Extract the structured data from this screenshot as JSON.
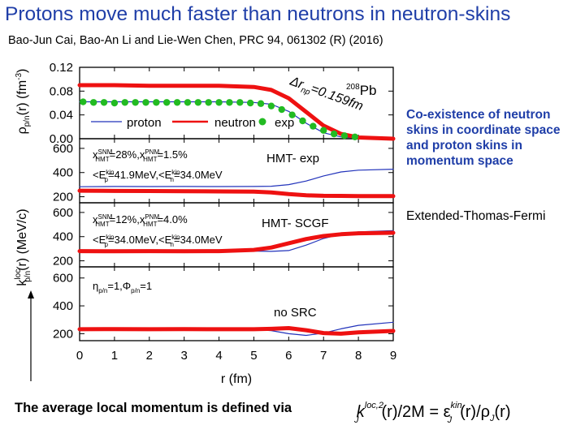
{
  "slide": {
    "title": "Protons move much faster than neutrons in neutron-skins",
    "citation": "Bao-Jun Cai, Bao-An Li and Lie-Wen Chen, PRC 94, 061302 (R) (2016)",
    "note": "Co-existence of neutron skins in coordinate space and proton skins in momentum space",
    "etf_label": "Extended-Thomas-Fermi",
    "average_text": "The average local momentum is defined via"
  },
  "formula": {
    "k": "k",
    "k_sub": "J",
    "k_sup": "loc,2",
    "mid": "(r)/2M  =  ε",
    "eps_sub": "J",
    "eps_sup": "kin",
    "tail": "(r)/ρ",
    "rho_sub": "J",
    "end": "(r)"
  },
  "figure": {
    "xlabel": "r (fm)",
    "ylabel_top_main": "ρ",
    "ylabel_top_sub": "p/n",
    "ylabel_top_rest": "(r) (fm",
    "ylabel_top_sup": "-3",
    "ylabel_top_end": ")",
    "ylabel_bottom_k": "k",
    "ylabel_bottom_sup": "loc",
    "ylabel_bottom_sub": "p/n",
    "ylabel_bottom_rest": "(r) (MeV/c)",
    "density_panel": {
      "legend": [
        "proton",
        "neutron",
        "exp"
      ],
      "annotation": "Δr",
      "annotation_sub": "np",
      "annotation_value": "=0.159fm",
      "nucleus_mass": "208",
      "nucleus": "Pb"
    },
    "panels": [
      {
        "tag": "HMT- exp",
        "line1": {
          "x1": "x",
          "s1a": "SNM",
          "s1b": "HMT",
          "v1": "=28%,x",
          "s2a": "PNM",
          "s2b": "HMT",
          "v2": "=1.5%"
        },
        "line2": {
          "a": "<E",
          "a_sup": "kin",
          "a_sub": "p",
          "av": "=41.9MeV,<E",
          "b_sup": "kin",
          "b_sub": "n",
          "bv": "=34.0MeV"
        }
      },
      {
        "tag": "HMT- SCGF",
        "line1": {
          "x1": "x",
          "s1a": "SNM",
          "s1b": "HMT",
          "v1": "=12%,x",
          "s2a": "PNM",
          "s2b": "HMT",
          "v2": "=4.0%"
        },
        "line2": {
          "a": "<E",
          "a_sup": "kin",
          "a_sub": "p",
          "av": "=34.0MeV,<E",
          "b_sup": "kin",
          "b_sub": "n",
          "bv": "=34.0MeV"
        }
      },
      {
        "tag": "no SRC",
        "line1": {
          "eta": "η",
          "eta_sub": "p/n",
          "eta_val": "=1,Φ",
          "phi_sub": "p/n",
          "phi_val": "=1"
        }
      }
    ]
  },
  "colors": {
    "title": "#1f3ea8",
    "proton": "#2233bb",
    "neutron": "#ee1111",
    "exp": "#22bb22"
  },
  "chart_data": [
    {
      "type": "line",
      "xlim": [
        0,
        9
      ],
      "ylim": [
        0,
        0.12
      ],
      "x_ticks": [
        "0",
        "1",
        "2",
        "3",
        "4",
        "5",
        "6",
        "7",
        "8",
        "9"
      ],
      "y_ticks": [
        "0.00",
        "0.04",
        "0.08",
        "0.12"
      ],
      "series": [
        {
          "name": "proton",
          "x": [
            0,
            1,
            2,
            3,
            4,
            5,
            5.5,
            6,
            6.5,
            7,
            7.5,
            8,
            9
          ],
          "y": [
            0.062,
            0.062,
            0.062,
            0.062,
            0.062,
            0.061,
            0.058,
            0.046,
            0.026,
            0.01,
            0.003,
            0.001,
            0
          ]
        },
        {
          "name": "neutron",
          "x": [
            0,
            1,
            2,
            3,
            4,
            5,
            5.5,
            6,
            6.5,
            7,
            7.5,
            8,
            9
          ],
          "y": [
            0.09,
            0.09,
            0.089,
            0.089,
            0.089,
            0.087,
            0.082,
            0.068,
            0.045,
            0.022,
            0.008,
            0.002,
            0
          ]
        },
        {
          "name": "exp",
          "x": [
            0.1,
            0.4,
            0.7,
            1.0,
            1.3,
            1.6,
            1.9,
            2.2,
            2.5,
            2.8,
            3.1,
            3.4,
            3.7,
            4.0,
            4.3,
            4.6,
            4.9,
            5.2,
            5.5,
            5.8,
            6.1,
            6.4,
            6.7,
            7.0,
            7.3,
            7.6,
            7.9
          ],
          "y": [
            0.062,
            0.061,
            0.061,
            0.06,
            0.061,
            0.061,
            0.061,
            0.061,
            0.061,
            0.061,
            0.061,
            0.061,
            0.061,
            0.061,
            0.061,
            0.061,
            0.06,
            0.059,
            0.055,
            0.049,
            0.04,
            0.03,
            0.021,
            0.014,
            0.008,
            0.005,
            0.003
          ]
        }
      ]
    },
    {
      "type": "line",
      "xlim": [
        0,
        9
      ],
      "ylim": [
        150,
        680
      ],
      "y_ticks": [
        "200",
        "400",
        "600"
      ],
      "series": [
        {
          "name": "proton",
          "x": [
            0,
            1,
            2,
            3,
            4,
            5,
            5.5,
            6,
            6.5,
            7,
            7.5,
            8,
            9
          ],
          "y": [
            283,
            285,
            284,
            285,
            284,
            285,
            287,
            300,
            330,
            372,
            405,
            420,
            428
          ]
        },
        {
          "name": "neutron",
          "x": [
            0,
            1,
            2,
            3,
            4,
            5,
            5.5,
            6,
            6.5,
            7,
            7.5,
            8,
            9
          ],
          "y": [
            250,
            248,
            247,
            246,
            244,
            242,
            236,
            222,
            212,
            208,
            207,
            206,
            205
          ]
        }
      ]
    },
    {
      "type": "line",
      "xlim": [
        0,
        9
      ],
      "ylim": [
        150,
        680
      ],
      "y_ticks": [
        "200",
        "400",
        "600"
      ],
      "series": [
        {
          "name": "proton",
          "x": [
            0,
            1,
            2,
            3,
            4,
            5,
            5.5,
            6,
            6.5,
            7,
            7.5,
            8,
            9
          ],
          "y": [
            278,
            278,
            279,
            278,
            279,
            280,
            278,
            285,
            330,
            385,
            420,
            440,
            450
          ]
        },
        {
          "name": "neutron",
          "x": [
            0,
            1,
            2,
            3,
            4,
            5,
            5.5,
            6,
            6.5,
            7,
            7.5,
            8,
            9
          ],
          "y": [
            280,
            279,
            280,
            279,
            280,
            290,
            310,
            345,
            380,
            405,
            420,
            428,
            432
          ]
        }
      ]
    },
    {
      "type": "line",
      "xlim": [
        0,
        9
      ],
      "ylim": [
        150,
        680
      ],
      "y_ticks": [
        "200",
        "400",
        "600"
      ],
      "series": [
        {
          "name": "proton",
          "x": [
            0,
            1,
            2,
            3,
            4,
            5,
            5.5,
            6,
            6.5,
            7,
            7.5,
            8,
            9
          ],
          "y": [
            232,
            231,
            232,
            231,
            232,
            230,
            222,
            200,
            188,
            205,
            235,
            260,
            282
          ]
        },
        {
          "name": "neutron",
          "x": [
            0,
            1,
            2,
            3,
            4,
            5,
            5.5,
            6,
            6.5,
            7,
            7.5,
            8,
            9
          ],
          "y": [
            232,
            233,
            232,
            233,
            232,
            232,
            235,
            240,
            225,
            205,
            200,
            210,
            220
          ]
        }
      ]
    }
  ]
}
